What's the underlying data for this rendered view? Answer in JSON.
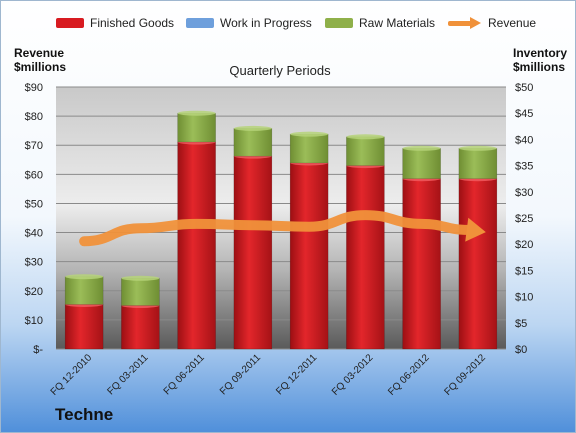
{
  "company": "Techne",
  "legend": {
    "finished": "Finished Goods",
    "wip": "Work in Progress",
    "raw": "Raw Materials",
    "revenue": "Revenue"
  },
  "axis_titles": {
    "left_line1": "Revenue",
    "left_line2": "$millions",
    "right_line1": "Inventory",
    "right_line2": "$millions"
  },
  "colors": {
    "finished": "#d81b21",
    "wip": "#6e9fdc",
    "raw": "#8fb04a",
    "revenue": "#f0913a"
  },
  "chart_data": {
    "type": "bar",
    "title": "Quarterly Periods",
    "categories": [
      "FQ 12-2010",
      "FQ 03-2011",
      "FQ 06-2011",
      "FQ 09-2011",
      "FQ 12-2011",
      "FQ 03-2012",
      "FQ 06-2012",
      "FQ 09-2012"
    ],
    "stacked": true,
    "series": [
      {
        "name": "Finished Goods",
        "axis": "right",
        "values": [
          8.5,
          8.3,
          39.5,
          36.8,
          35.5,
          35.0,
          32.5,
          32.5
        ]
      },
      {
        "name": "Work in Progress",
        "axis": "right",
        "values": [
          0,
          0,
          0,
          0,
          0,
          0,
          0,
          0
        ]
      },
      {
        "name": "Raw Materials",
        "axis": "right",
        "values": [
          5.3,
          5.2,
          5.5,
          5.3,
          5.5,
          5.5,
          5.8,
          5.8
        ]
      },
      {
        "name": "Revenue",
        "axis": "left",
        "type": "line",
        "values": [
          37,
          41.5,
          43,
          42.5,
          42,
          46,
          43,
          40.5
        ]
      }
    ],
    "left_axis": {
      "ylim": [
        0,
        90
      ],
      "ticks": [
        "$-",
        "$10",
        "$20",
        "$30",
        "$40",
        "$50",
        "$60",
        "$70",
        "$80",
        "$90"
      ]
    },
    "right_axis": {
      "ylim": [
        0,
        50
      ],
      "ticks": [
        "$0",
        "$5",
        "$10",
        "$15",
        "$20",
        "$25",
        "$30",
        "$35",
        "$40",
        "$45",
        "$50"
      ]
    },
    "grid": true,
    "legend_position": "top"
  }
}
